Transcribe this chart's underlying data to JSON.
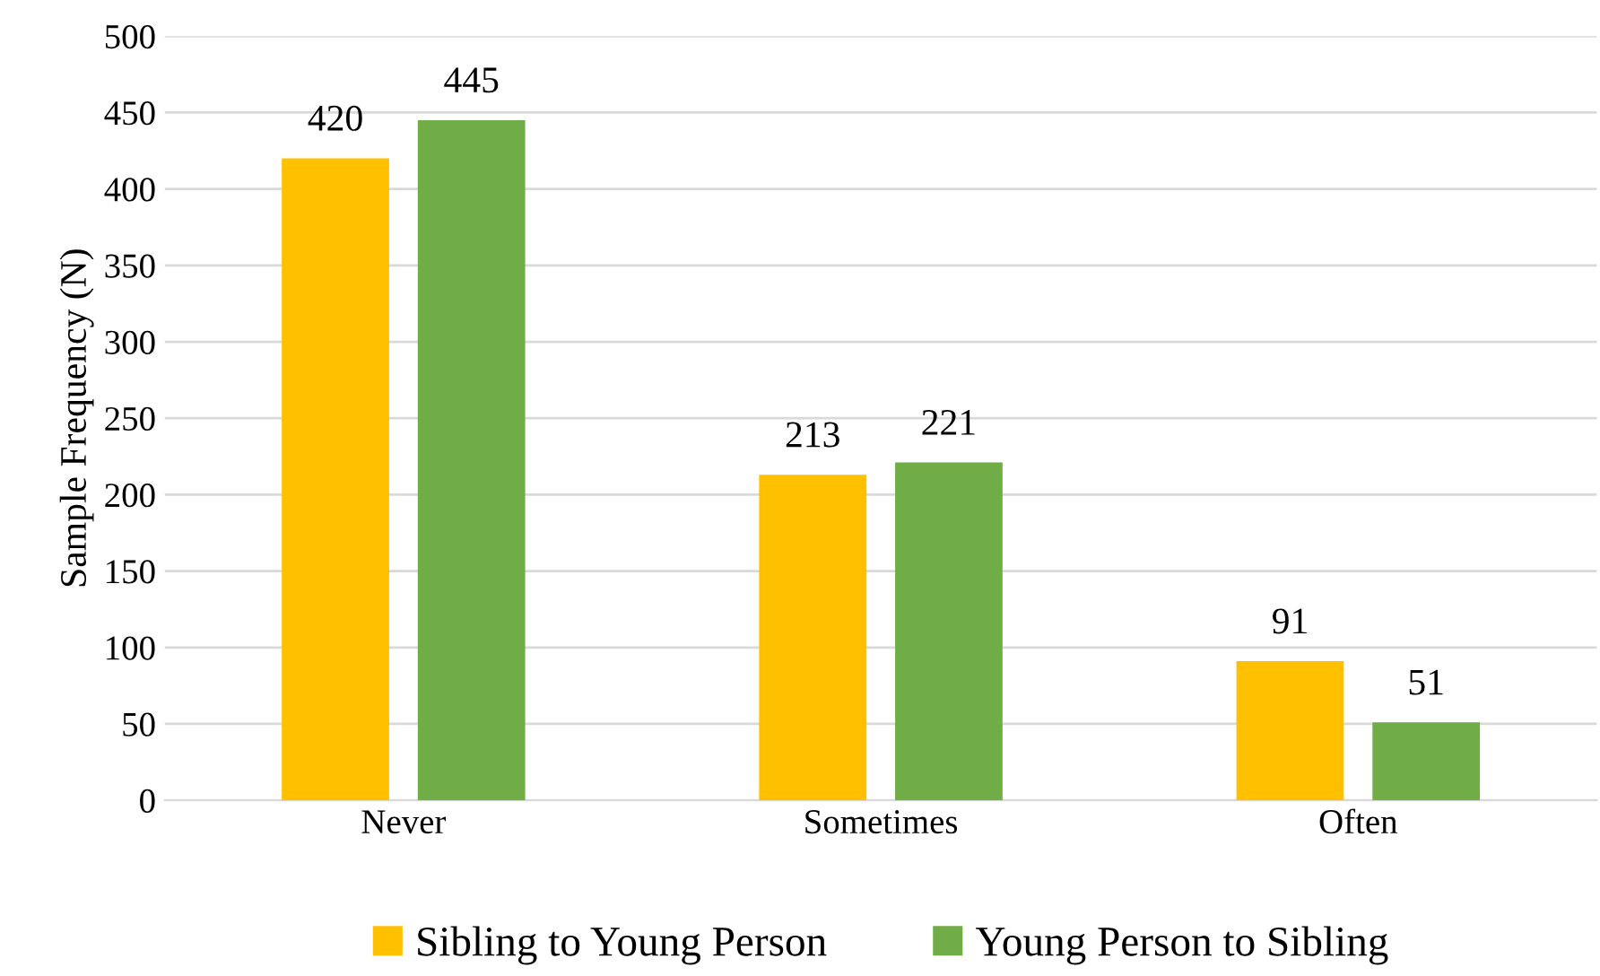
{
  "chart_data": {
    "type": "bar",
    "ylabel": "Sample Frequency (N)",
    "categories": [
      "Never",
      "Sometimes",
      "Often"
    ],
    "series": [
      {
        "name": "Sibling to Young Person",
        "color": "#ffc000",
        "values": [
          420,
          213,
          91
        ]
      },
      {
        "name": "Young Person to Sibling",
        "color": "#70ad47",
        "values": [
          445,
          221,
          51
        ]
      }
    ],
    "ylim": [
      0,
      500
    ],
    "yticks": [
      0,
      50,
      100,
      150,
      200,
      250,
      300,
      350,
      400,
      450,
      500
    ],
    "grid": "y",
    "legend": "bottom",
    "data_labels": true
  }
}
